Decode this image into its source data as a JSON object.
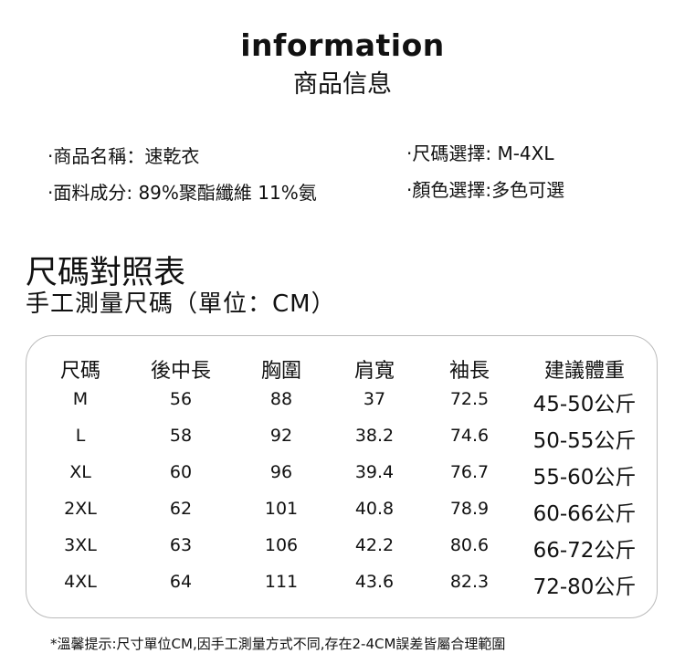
{
  "header": {
    "title_en": "information",
    "title_zh": "商品信息"
  },
  "info": {
    "name": "·商品名稱：速乾衣",
    "fabric": "·面料成分: 89%聚酯纖維 11%氨",
    "size": "·尺碼選擇: M-4XL",
    "color": "·顏色選擇:多色可選"
  },
  "size_chart": {
    "title": "尺碼對照表",
    "subtitle": "手工測量尺碼（單位：CM）",
    "columns": [
      "尺碼",
      "後中長",
      "胸圍",
      "肩寬",
      "袖長",
      "建議體重"
    ],
    "rows": [
      [
        "M",
        "56",
        "88",
        "37",
        "72.5",
        "45-50公斤"
      ],
      [
        "L",
        "58",
        "92",
        "38.2",
        "74.6",
        "50-55公斤"
      ],
      [
        "XL",
        "60",
        "96",
        "39.4",
        "76.7",
        "55-60公斤"
      ],
      [
        "2XL",
        "62",
        "101",
        "40.8",
        "78.9",
        "60-66公斤"
      ],
      [
        "3XL",
        "63",
        "106",
        "42.2",
        "80.6",
        "66-72公斤"
      ],
      [
        "4XL",
        "64",
        "111",
        "43.6",
        "82.3",
        "72-80公斤"
      ]
    ]
  },
  "note": "*溫馨提示:尺寸單位CM,因手工測量方式不同,存在2-4CM誤差皆屬合理範圍"
}
